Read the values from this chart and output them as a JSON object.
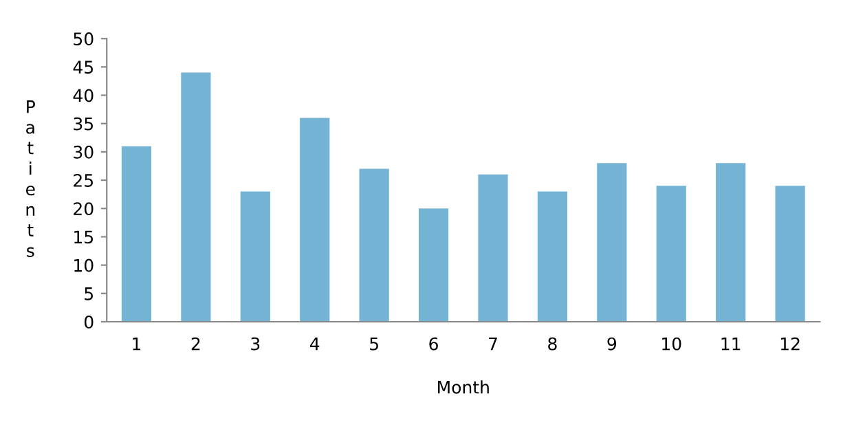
{
  "chart_data": {
    "type": "bar",
    "xlabel": "Month",
    "ylabel": "Patients",
    "categories": [
      "1",
      "2",
      "3",
      "4",
      "5",
      "6",
      "7",
      "8",
      "9",
      "10",
      "11",
      "12"
    ],
    "values": [
      31,
      44,
      23,
      36,
      27,
      20,
      26,
      23,
      28,
      24,
      28,
      24
    ],
    "color": "#74b3d4",
    "ylim": [
      0,
      50
    ],
    "yticks": [
      0,
      5,
      10,
      15,
      20,
      25,
      30,
      35,
      40,
      45,
      50
    ],
    "grid": false,
    "legend": false
  }
}
